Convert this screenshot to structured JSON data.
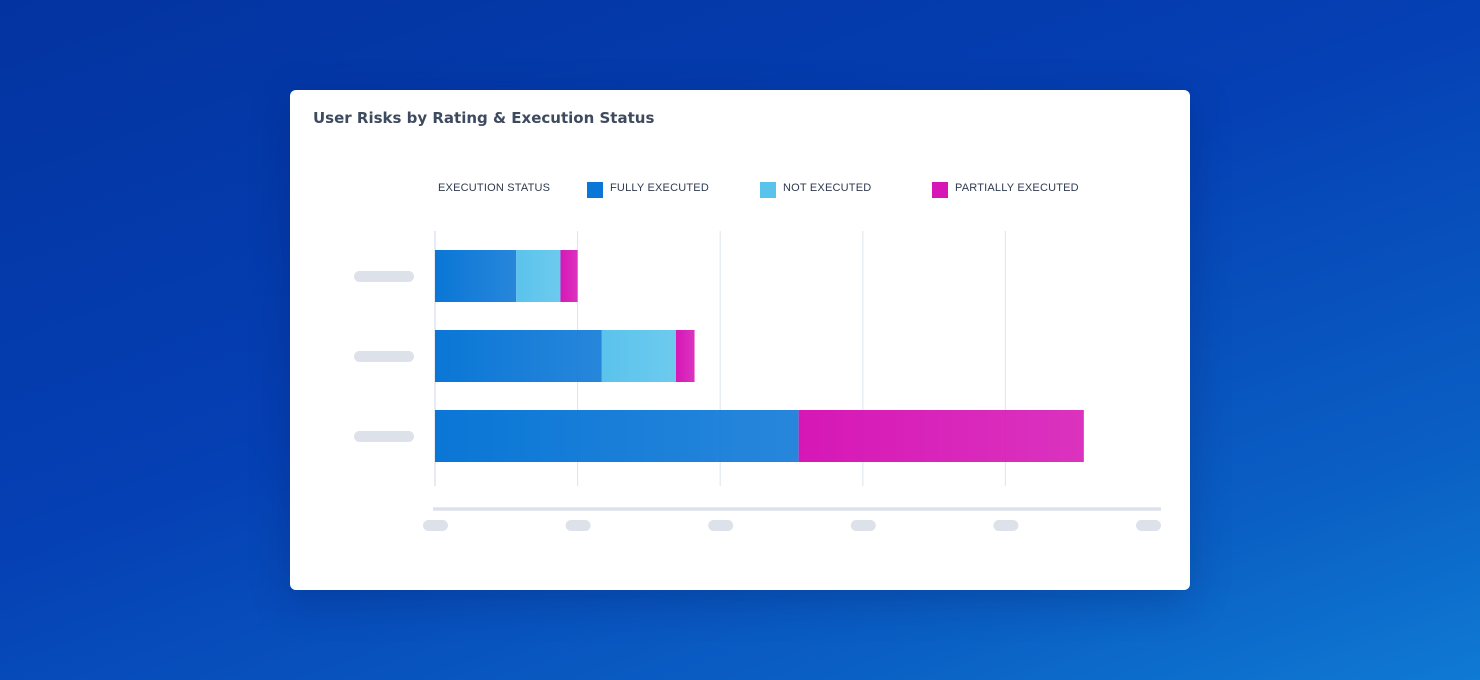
{
  "card": {
    "title": "User Risks by Rating & Execution Status"
  },
  "legend": {
    "heading": "EXECUTION STATUS",
    "items": [
      {
        "label": "FULLY EXECUTED",
        "color": "#0a76d6"
      },
      {
        "label": "NOT EXECUTED",
        "color": "#5ac3ec"
      },
      {
        "label": "PARTIALLY EXECUTED",
        "color": "#d617b6"
      }
    ]
  },
  "chart_data": {
    "type": "bar",
    "orientation": "horizontal",
    "stacked": true,
    "title": "User Risks by Rating & Execution Status",
    "legend_title": "EXECUTION STATUS",
    "legend_position": "top",
    "categories": [
      "",
      "",
      ""
    ],
    "xlim": [
      0,
      5
    ],
    "x_ticks": [
      0,
      1,
      2,
      3,
      4,
      5
    ],
    "grid": true,
    "series": [
      {
        "name": "FULLY EXECUTED",
        "color": "#0a76d6",
        "values": [
          0.57,
          1.17,
          2.55
        ]
      },
      {
        "name": "NOT EXECUTED",
        "color": "#5ac3ec",
        "values": [
          0.31,
          0.52,
          0
        ]
      },
      {
        "name": "PARTIALLY EXECUTED",
        "color": "#d617b6",
        "values": [
          0.12,
          0.13,
          2.0
        ]
      }
    ]
  }
}
